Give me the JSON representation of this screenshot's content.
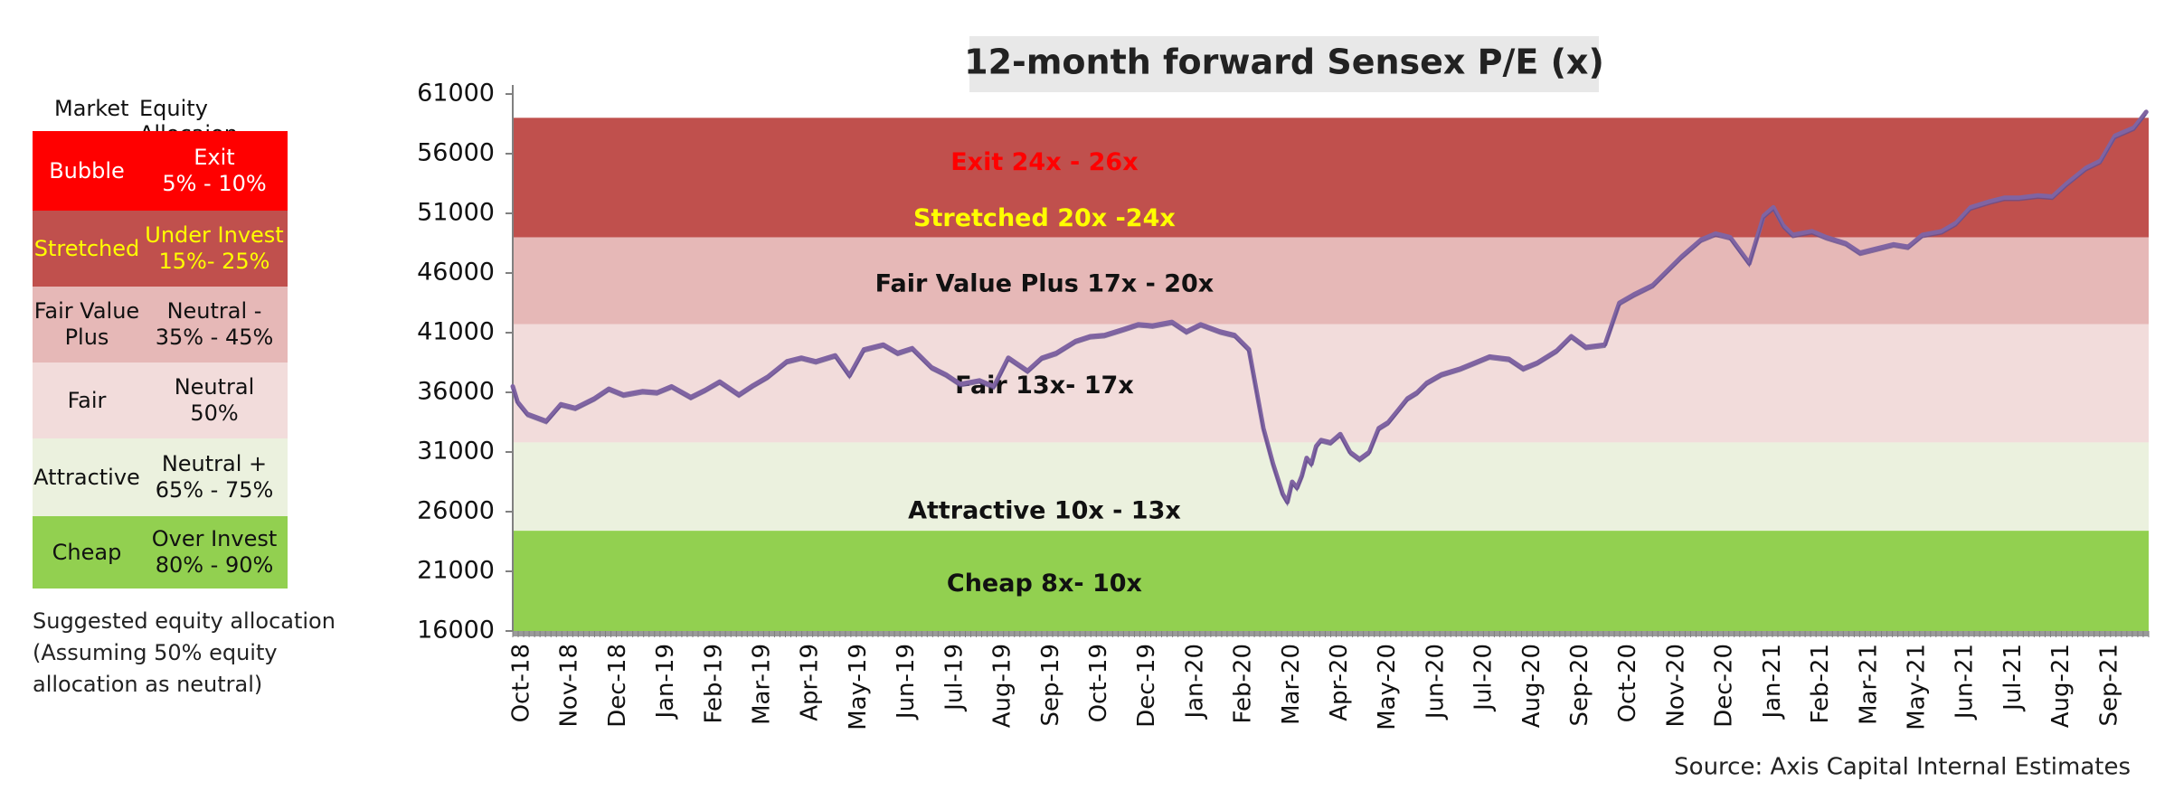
{
  "table": {
    "headers": [
      "Market",
      "Equity Allocaion"
    ],
    "rows": [
      {
        "market": "Bubble",
        "allocation_line1": "Exit",
        "allocation_line2": "5% - 10%",
        "bg": "#ff0000",
        "fg": "#ffffff"
      },
      {
        "market": "Stretched",
        "allocation_line1": "Under Invest",
        "allocation_line2": "15%- 25%",
        "bg": "#c0504d",
        "fg": "#ffff00"
      },
      {
        "market_line1": "Fair Value",
        "market_line2": "Plus",
        "allocation_line1": "Neutral -",
        "allocation_line2": "35% - 45%",
        "bg": "#e6b8b7",
        "fg": "#111111"
      },
      {
        "market": "Fair",
        "allocation_line1": "Neutral",
        "allocation_line2": "50%",
        "bg": "#f2dcdb",
        "fg": "#111111"
      },
      {
        "market": "Attractive",
        "allocation_line1": "Neutral +",
        "allocation_line2": "65% - 75%",
        "bg": "#ebf1de",
        "fg": "#111111"
      },
      {
        "market": "Cheap",
        "allocation_line1": "Over Invest",
        "allocation_line2": "80% - 90%",
        "bg": "#92d050",
        "fg": "#111111"
      }
    ],
    "note": [
      "Suggested equity allocation",
      "(Assuming 50% equity",
      "allocation as neutral)"
    ]
  },
  "chart_data": {
    "type": "line",
    "title": "12-month forward Sensex P/E (x)",
    "source": "Source: Axis Capital Internal Estimates",
    "ylim": [
      16000,
      61000
    ],
    "yticks": [
      16000,
      21000,
      26000,
      31000,
      36000,
      41000,
      46000,
      51000,
      56000,
      61000
    ],
    "x_labels": [
      "Oct-18",
      "Nov-18",
      "Dec-18",
      "Jan-19",
      "Feb-19",
      "Mar-19",
      "Apr-19",
      "May-19",
      "Jun-19",
      "Jul-19",
      "Aug-19",
      "Sep-19",
      "Oct-19",
      "Dec-19",
      "Jan-20",
      "Feb-20",
      "Mar-20",
      "Apr-20",
      "May-20",
      "Jun-20",
      "Jul-20",
      "Aug-20",
      "Sep-20",
      "Oct-20",
      "Nov-20",
      "Dec-20",
      "Jan-21",
      "Feb-21",
      "Mar-21",
      "May-21",
      "Jun-21",
      "Jul-21",
      "Aug-21",
      "Sep-21"
    ],
    "bands": [
      {
        "label": "Exit 24x - 26x",
        "from": 49000,
        "to": 59000,
        "color": "#c0504d",
        "label_color": "#ff0000",
        "label_value": 55200
      },
      {
        "label": "Stretched 20x -24x",
        "from": 49000,
        "to": 59000,
        "color": "#c0504d",
        "label_color": "#ffff00",
        "label_value": 50500
      },
      {
        "label": "Fair Value Plus 17x - 20x",
        "from": 41700,
        "to": 49000,
        "color": "#e6b8b7",
        "label_color": "#111111",
        "label_value": 45000
      },
      {
        "label": "Fair 13x- 17x",
        "from": 31800,
        "to": 41700,
        "color": "#f2dcdb",
        "label_color": "#111111",
        "label_value": 36500
      },
      {
        "label": "Attractive 10x - 13x",
        "from": 24400,
        "to": 31800,
        "color": "#ebf1de",
        "label_color": "#111111",
        "label_value": 26000
      },
      {
        "label": "Cheap 8x- 10x",
        "from": 16000,
        "to": 24400,
        "color": "#92d050",
        "label_color": "#111111",
        "label_value": 19900
      }
    ],
    "series": [
      {
        "line_color": "#8064a2",
        "x": [
          0,
          0.1,
          0.3,
          0.7,
          1,
          1.3,
          1.7,
          2,
          2.3,
          2.7,
          3,
          3.3,
          3.7,
          4,
          4.3,
          4.7,
          5,
          5.3,
          5.7,
          6,
          6.3,
          6.7,
          7,
          7.3,
          7.7,
          8,
          8.3,
          8.7,
          9,
          9.3,
          9.7,
          10,
          10.3,
          10.7,
          11,
          11.3,
          11.7,
          12,
          12.3,
          12.7,
          13,
          13.3,
          13.7,
          14,
          14.3,
          14.7,
          15,
          15.3,
          15.6,
          15.8,
          16,
          16.1,
          16.2,
          16.3,
          16.4,
          16.5,
          16.6,
          16.7,
          16.8,
          17,
          17.2,
          17.4,
          17.6,
          17.8,
          18,
          18.2,
          18.4,
          18.6,
          18.8,
          19,
          19.3,
          19.7,
          20,
          20.3,
          20.7,
          21,
          21.3,
          21.7,
          22,
          22.3,
          22.7,
          23,
          23.3,
          23.7,
          24,
          24.3,
          24.7,
          25,
          25.3,
          25.7,
          26,
          26.2,
          26.4,
          26.6,
          27,
          27.3,
          27.7,
          28,
          28.3,
          28.7,
          29,
          29.3,
          29.7,
          30,
          30.3,
          30.7,
          31,
          31.3,
          31.7,
          32,
          32.3,
          32.7,
          33,
          33.3,
          33.7,
          33.95
        ],
        "y": [
          36500,
          35200,
          34200,
          33600,
          35000,
          34700,
          35500,
          36300,
          35800,
          36100,
          36000,
          36500,
          35600,
          36200,
          36900,
          35800,
          36600,
          37300,
          38600,
          38900,
          38600,
          39100,
          37400,
          39600,
          40000,
          39300,
          39700,
          38100,
          37500,
          36700,
          37000,
          36500,
          38900,
          37800,
          38900,
          39300,
          40300,
          40700,
          40800,
          41300,
          41700,
          41600,
          41900,
          41100,
          41700,
          41100,
          40800,
          39600,
          33000,
          30000,
          27500,
          26800,
          28500,
          28000,
          29000,
          30500,
          30000,
          31500,
          32000,
          31800,
          32500,
          31000,
          30400,
          31000,
          33000,
          33500,
          34500,
          35500,
          36000,
          36800,
          37500,
          38000,
          38500,
          39000,
          38800,
          38000,
          38500,
          39500,
          40700,
          39800,
          40000,
          43500,
          44200,
          45000,
          46200,
          47400,
          48800,
          49300,
          49000,
          46800,
          50800,
          51500,
          50000,
          49200,
          49500,
          49000,
          48500,
          47700,
          48000,
          48400,
          48200,
          49200,
          49500,
          50200,
          51500,
          52000,
          52300,
          52300,
          52500,
          52400,
          53500,
          54800,
          55400,
          57500,
          58200,
          59500
        ]
      }
    ]
  }
}
